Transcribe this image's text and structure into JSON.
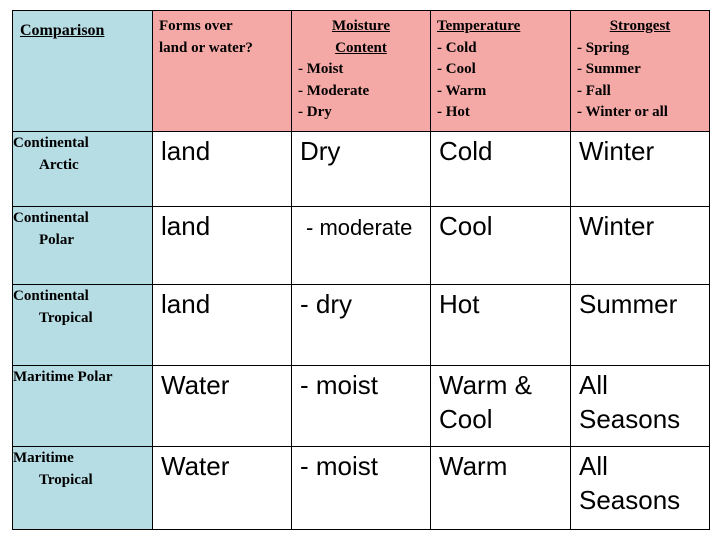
{
  "headers": {
    "comparison": "Comparison",
    "forms": [
      "Forms over",
      "land or water?"
    ],
    "moisture": {
      "title": [
        "Moisture",
        "Content"
      ],
      "options": [
        "- Moist",
        "- Moderate",
        "- Dry"
      ]
    },
    "temperature": {
      "title": "Temperature",
      "options": [
        "- Cold",
        "- Cool",
        "- Warm",
        "- Hot"
      ]
    },
    "strongest": {
      "title": "Strongest",
      "options": [
        "- Spring",
        "- Summer",
        "- Fall",
        "- Winter or all"
      ]
    }
  },
  "rows": [
    {
      "label": [
        "Continental",
        "Arctic"
      ],
      "forms": "land",
      "moisture": "Dry",
      "temperature": [
        "Cold"
      ],
      "strongest": [
        "Winter"
      ]
    },
    {
      "label": [
        "Continental",
        "Polar"
      ],
      "forms": "land",
      "moisture": "- moderate",
      "temperature": [
        "Cool"
      ],
      "strongest": [
        "Winter"
      ]
    },
    {
      "label": [
        "Continental",
        "Tropical"
      ],
      "forms": "land",
      "moisture": "- dry",
      "temperature": [
        "Hot"
      ],
      "strongest": [
        "Summer"
      ]
    },
    {
      "label": [
        "Maritime Polar"
      ],
      "forms": "Water",
      "moisture": "- moist",
      "temperature": [
        "Warm &",
        "Cool"
      ],
      "strongest": [
        "All",
        "Seasons"
      ]
    },
    {
      "label": [
        "Maritime",
        "Tropical"
      ],
      "forms": "Water",
      "moisture": "- moist",
      "temperature": [
        "Warm"
      ],
      "strongest": [
        "All",
        "Seasons"
      ]
    }
  ],
  "colors": {
    "label_column": "#b7dde4",
    "header_row": "#f4a9a6"
  }
}
